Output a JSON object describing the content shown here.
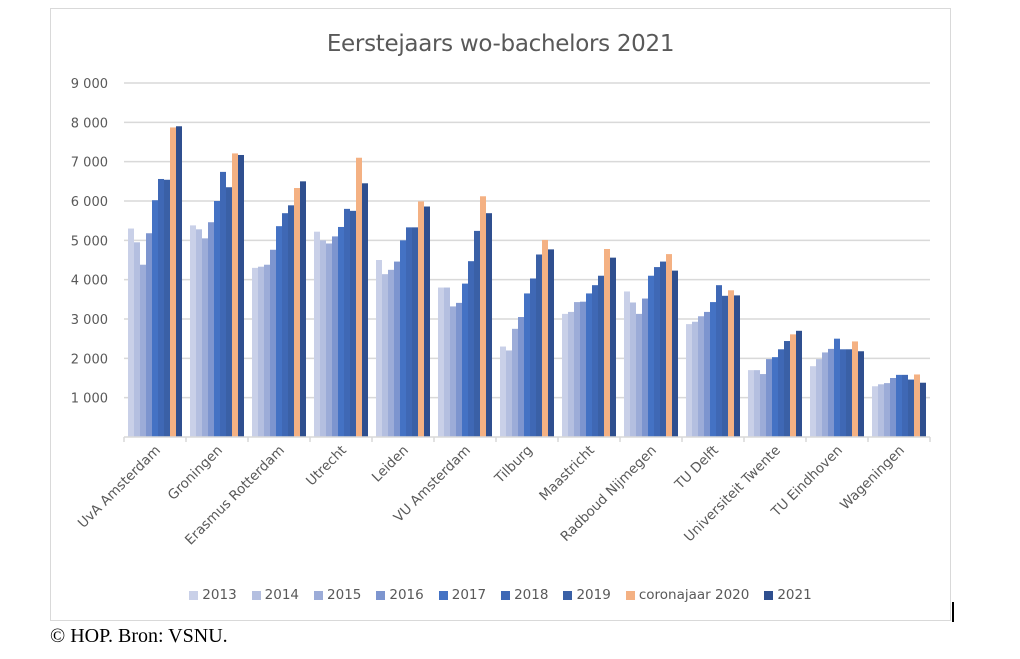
{
  "chart_data": {
    "type": "bar",
    "title": "Eerstejaars wo-bachelors 2021",
    "xlabel": "",
    "ylabel": "",
    "ylim": [
      0,
      9000
    ],
    "yticks": [
      1000,
      2000,
      3000,
      4000,
      5000,
      6000,
      7000,
      8000,
      9000
    ],
    "ytick_labels": [
      "1 000",
      "2 000",
      "3 000",
      "4 000",
      "5 000",
      "6 000",
      "7 000",
      "8 000",
      "9 000"
    ],
    "grid": true,
    "legend_position": "bottom",
    "categories": [
      "UvA Amsterdam",
      "Groningen",
      "Erasmus Rotterdam",
      "Utrecht",
      "Leiden",
      "VU Amsterdam",
      "Tilburg",
      "Maastricht",
      "Radboud Nijmegen",
      "TU Delft",
      "Universiteit Twente",
      "TU Eindhoven",
      "Wageningen"
    ],
    "series": [
      {
        "name": "2013",
        "color": "#c9d0e8",
        "values": [
          5300,
          5380,
          4300,
          5220,
          4500,
          3800,
          2300,
          3130,
          3700,
          2870,
          1700,
          1800,
          1290
        ]
      },
      {
        "name": "2014",
        "color": "#b4bfe0",
        "values": [
          4950,
          5280,
          4330,
          5000,
          4140,
          3800,
          2200,
          3180,
          3420,
          2930,
          1700,
          1980,
          1340
        ]
      },
      {
        "name": "2015",
        "color": "#9cacd8",
        "values": [
          4380,
          5050,
          4380,
          4920,
          4250,
          3320,
          2750,
          3430,
          3130,
          3070,
          1600,
          2150,
          1370
        ]
      },
      {
        "name": "2016",
        "color": "#7d95cf",
        "values": [
          5180,
          5460,
          4760,
          5100,
          4460,
          3410,
          3050,
          3440,
          3520,
          3180,
          1980,
          2240,
          1500
        ]
      },
      {
        "name": "2017",
        "color": "#4472c4",
        "values": [
          6020,
          6000,
          5360,
          5340,
          5000,
          3900,
          3650,
          3650,
          4100,
          3430,
          2030,
          2500,
          1580
        ]
      },
      {
        "name": "2018",
        "color": "#3f68b5",
        "values": [
          6560,
          6740,
          5690,
          5800,
          5330,
          4470,
          4030,
          3860,
          4320,
          3860,
          2230,
          2230,
          1580
        ]
      },
      {
        "name": "2019",
        "color": "#3a60a6",
        "values": [
          6540,
          6350,
          5890,
          5750,
          5330,
          5240,
          4640,
          4100,
          4460,
          3590,
          2440,
          2230,
          1460
        ]
      },
      {
        "name": "coronajaar 2020",
        "color": "#f4b183",
        "values": [
          7870,
          7210,
          6330,
          7100,
          5990,
          6120,
          5010,
          4780,
          4650,
          3730,
          2610,
          2430,
          1590
        ]
      },
      {
        "name": "2021",
        "color": "#2f4f8f",
        "values": [
          7900,
          7170,
          6500,
          6450,
          5860,
          5690,
          4770,
          4560,
          4230,
          3600,
          2700,
          2180,
          1380
        ]
      }
    ]
  },
  "footer": {
    "source": "© HOP. Bron: VSNU."
  }
}
